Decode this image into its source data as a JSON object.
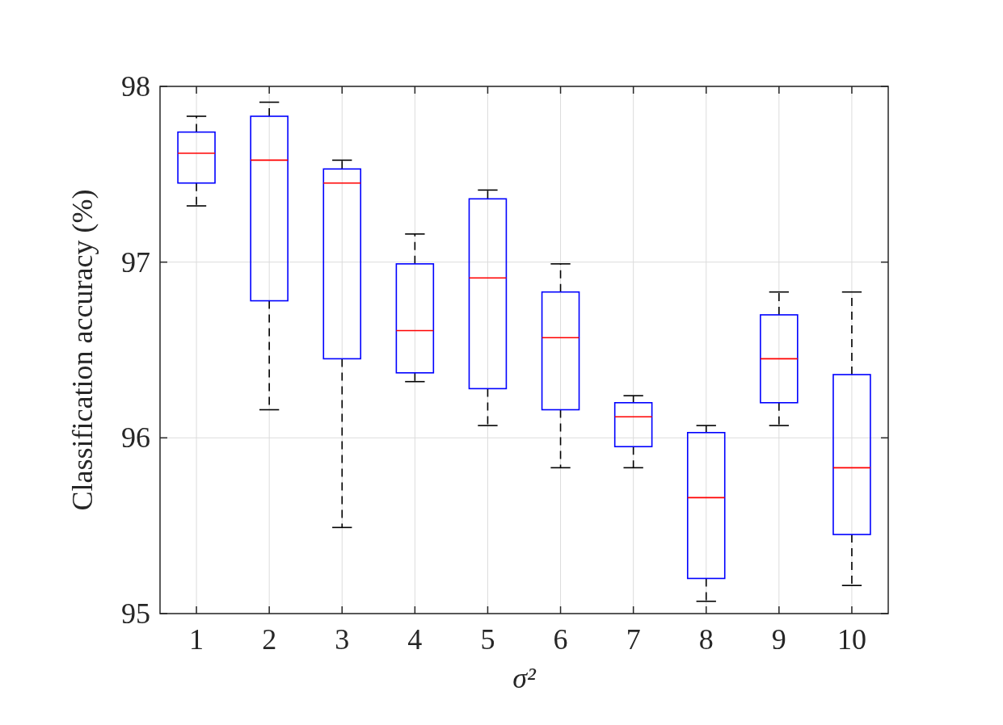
{
  "chart_data": {
    "type": "box",
    "xlabel": "σ²",
    "ylabel": "Classification accuracy (%)",
    "categories": [
      "1",
      "2",
      "3",
      "4",
      "5",
      "6",
      "7",
      "8",
      "9",
      "10"
    ],
    "color": "#0000ff",
    "ylim": [
      95,
      98
    ],
    "yticks": [
      95,
      96,
      97,
      98
    ],
    "grid": true,
    "boxes": [
      {
        "low": 97.32,
        "q1": 97.45,
        "median": 97.62,
        "q3": 97.74,
        "high": 97.83
      },
      {
        "low": 96.16,
        "q1": 96.78,
        "median": 97.58,
        "q3": 97.83,
        "high": 97.91
      },
      {
        "low": 95.49,
        "q1": 96.45,
        "median": 97.45,
        "q3": 97.53,
        "high": 97.58
      },
      {
        "low": 96.32,
        "q1": 96.37,
        "median": 96.61,
        "q3": 96.99,
        "high": 97.16
      },
      {
        "low": 96.07,
        "q1": 96.28,
        "median": 96.91,
        "q3": 97.36,
        "high": 97.41
      },
      {
        "low": 95.83,
        "q1": 96.16,
        "median": 96.57,
        "q3": 96.83,
        "high": 96.99
      },
      {
        "low": 95.83,
        "q1": 95.95,
        "median": 96.12,
        "q3": 96.2,
        "high": 96.24
      },
      {
        "low": 95.07,
        "q1": 95.2,
        "median": 95.66,
        "q3": 96.03,
        "high": 96.07
      },
      {
        "low": 96.07,
        "q1": 96.2,
        "median": 96.45,
        "q3": 96.7,
        "high": 96.83
      },
      {
        "low": 95.16,
        "q1": 95.45,
        "median": 95.83,
        "q3": 96.36,
        "high": 96.83
      }
    ]
  }
}
